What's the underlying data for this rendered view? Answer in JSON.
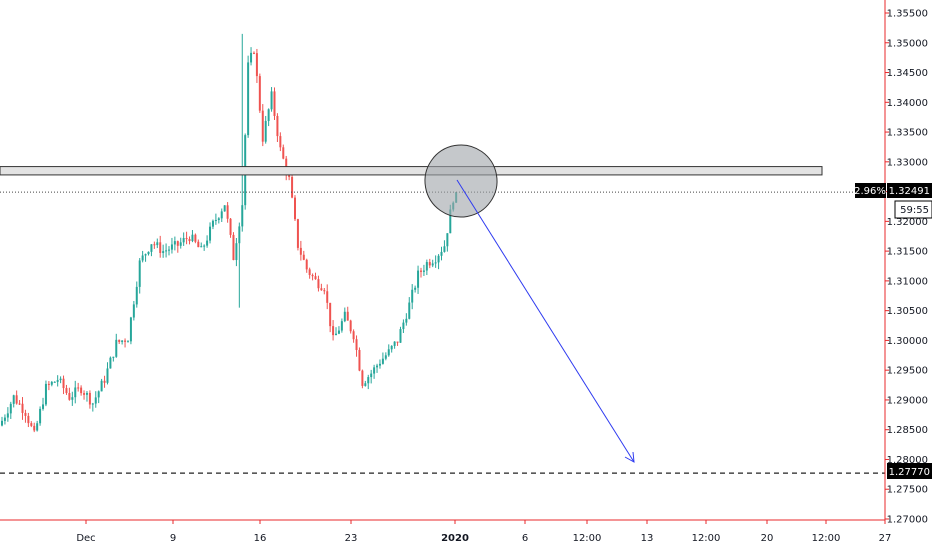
{
  "chart_data": {
    "type": "candlestick",
    "title": "",
    "xlabel": "",
    "ylabel": "",
    "ylim": [
      1.2685,
      1.3575
    ],
    "y_ticks": [
      "1.35500",
      "1.35000",
      "1.34500",
      "1.34000",
      "1.33500",
      "1.33000",
      "1.32500",
      "1.32000",
      "1.31500",
      "1.31000",
      "1.30500",
      "1.30000",
      "1.29500",
      "1.29000",
      "1.28500",
      "1.28000",
      "1.27500",
      "1.27000"
    ],
    "x_ticks": [
      "Dec",
      "9",
      "16",
      "23",
      "2020",
      "6",
      "12:00",
      "13",
      "12:00",
      "20",
      "12:00",
      "27"
    ],
    "last_price": "1.32491",
    "last_change": "2.96%",
    "countdown": "59:55",
    "target_level": "1.27770",
    "resistance_zone": [
      1.3278,
      1.3292
    ],
    "current_close": 1.32491,
    "colors": {
      "up": "#26a69a",
      "down": "#ef5350",
      "arrow": "#2f3bf0",
      "axis": "#e8282b"
    }
  }
}
